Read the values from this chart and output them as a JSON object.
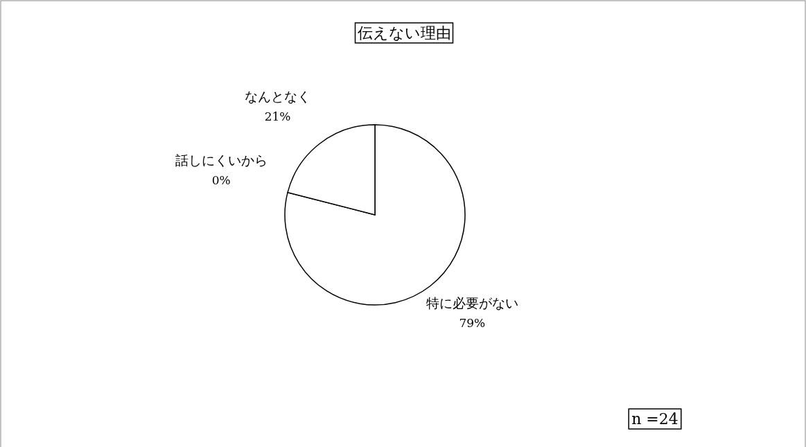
{
  "chart_data": {
    "type": "pie",
    "title": "伝えない理由",
    "categories": [
      "特に必要がない",
      "話しにくいから",
      "なんとなく"
    ],
    "values": [
      79,
      0,
      21
    ],
    "value_labels": [
      "79%",
      "0%",
      "21%"
    ],
    "colors": [
      "#ffffff",
      "#ffffff",
      "#ffffff"
    ],
    "annotations": [
      "n =24"
    ]
  }
}
